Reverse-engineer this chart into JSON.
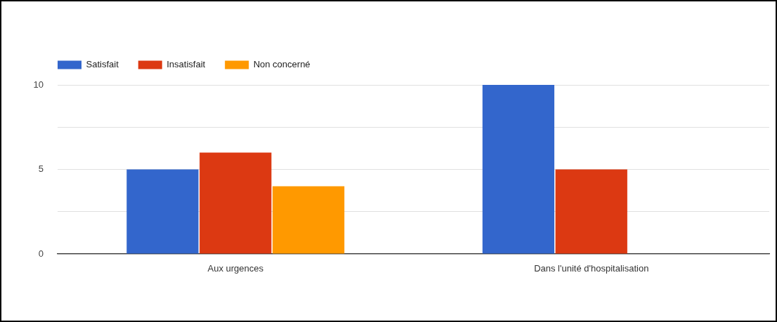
{
  "chart_data": {
    "type": "bar",
    "categories": [
      "Aux urgences",
      "Dans l'unité d'hospitalisation"
    ],
    "series": [
      {
        "name": "Satisfait",
        "color": "#3366cc",
        "values": [
          5,
          10
        ]
      },
      {
        "name": "Insatisfait",
        "color": "#dc3912",
        "values": [
          6,
          5
        ]
      },
      {
        "name": "Non concerné",
        "color": "#ff9900",
        "values": [
          4,
          0
        ]
      }
    ],
    "ylim": [
      0,
      10
    ],
    "yticks": [
      0,
      {
        "value": 2.5,
        "label": null
      },
      5,
      {
        "value": 7.5,
        "label": null
      },
      10
    ],
    "grid": "y",
    "legend": "top left"
  }
}
